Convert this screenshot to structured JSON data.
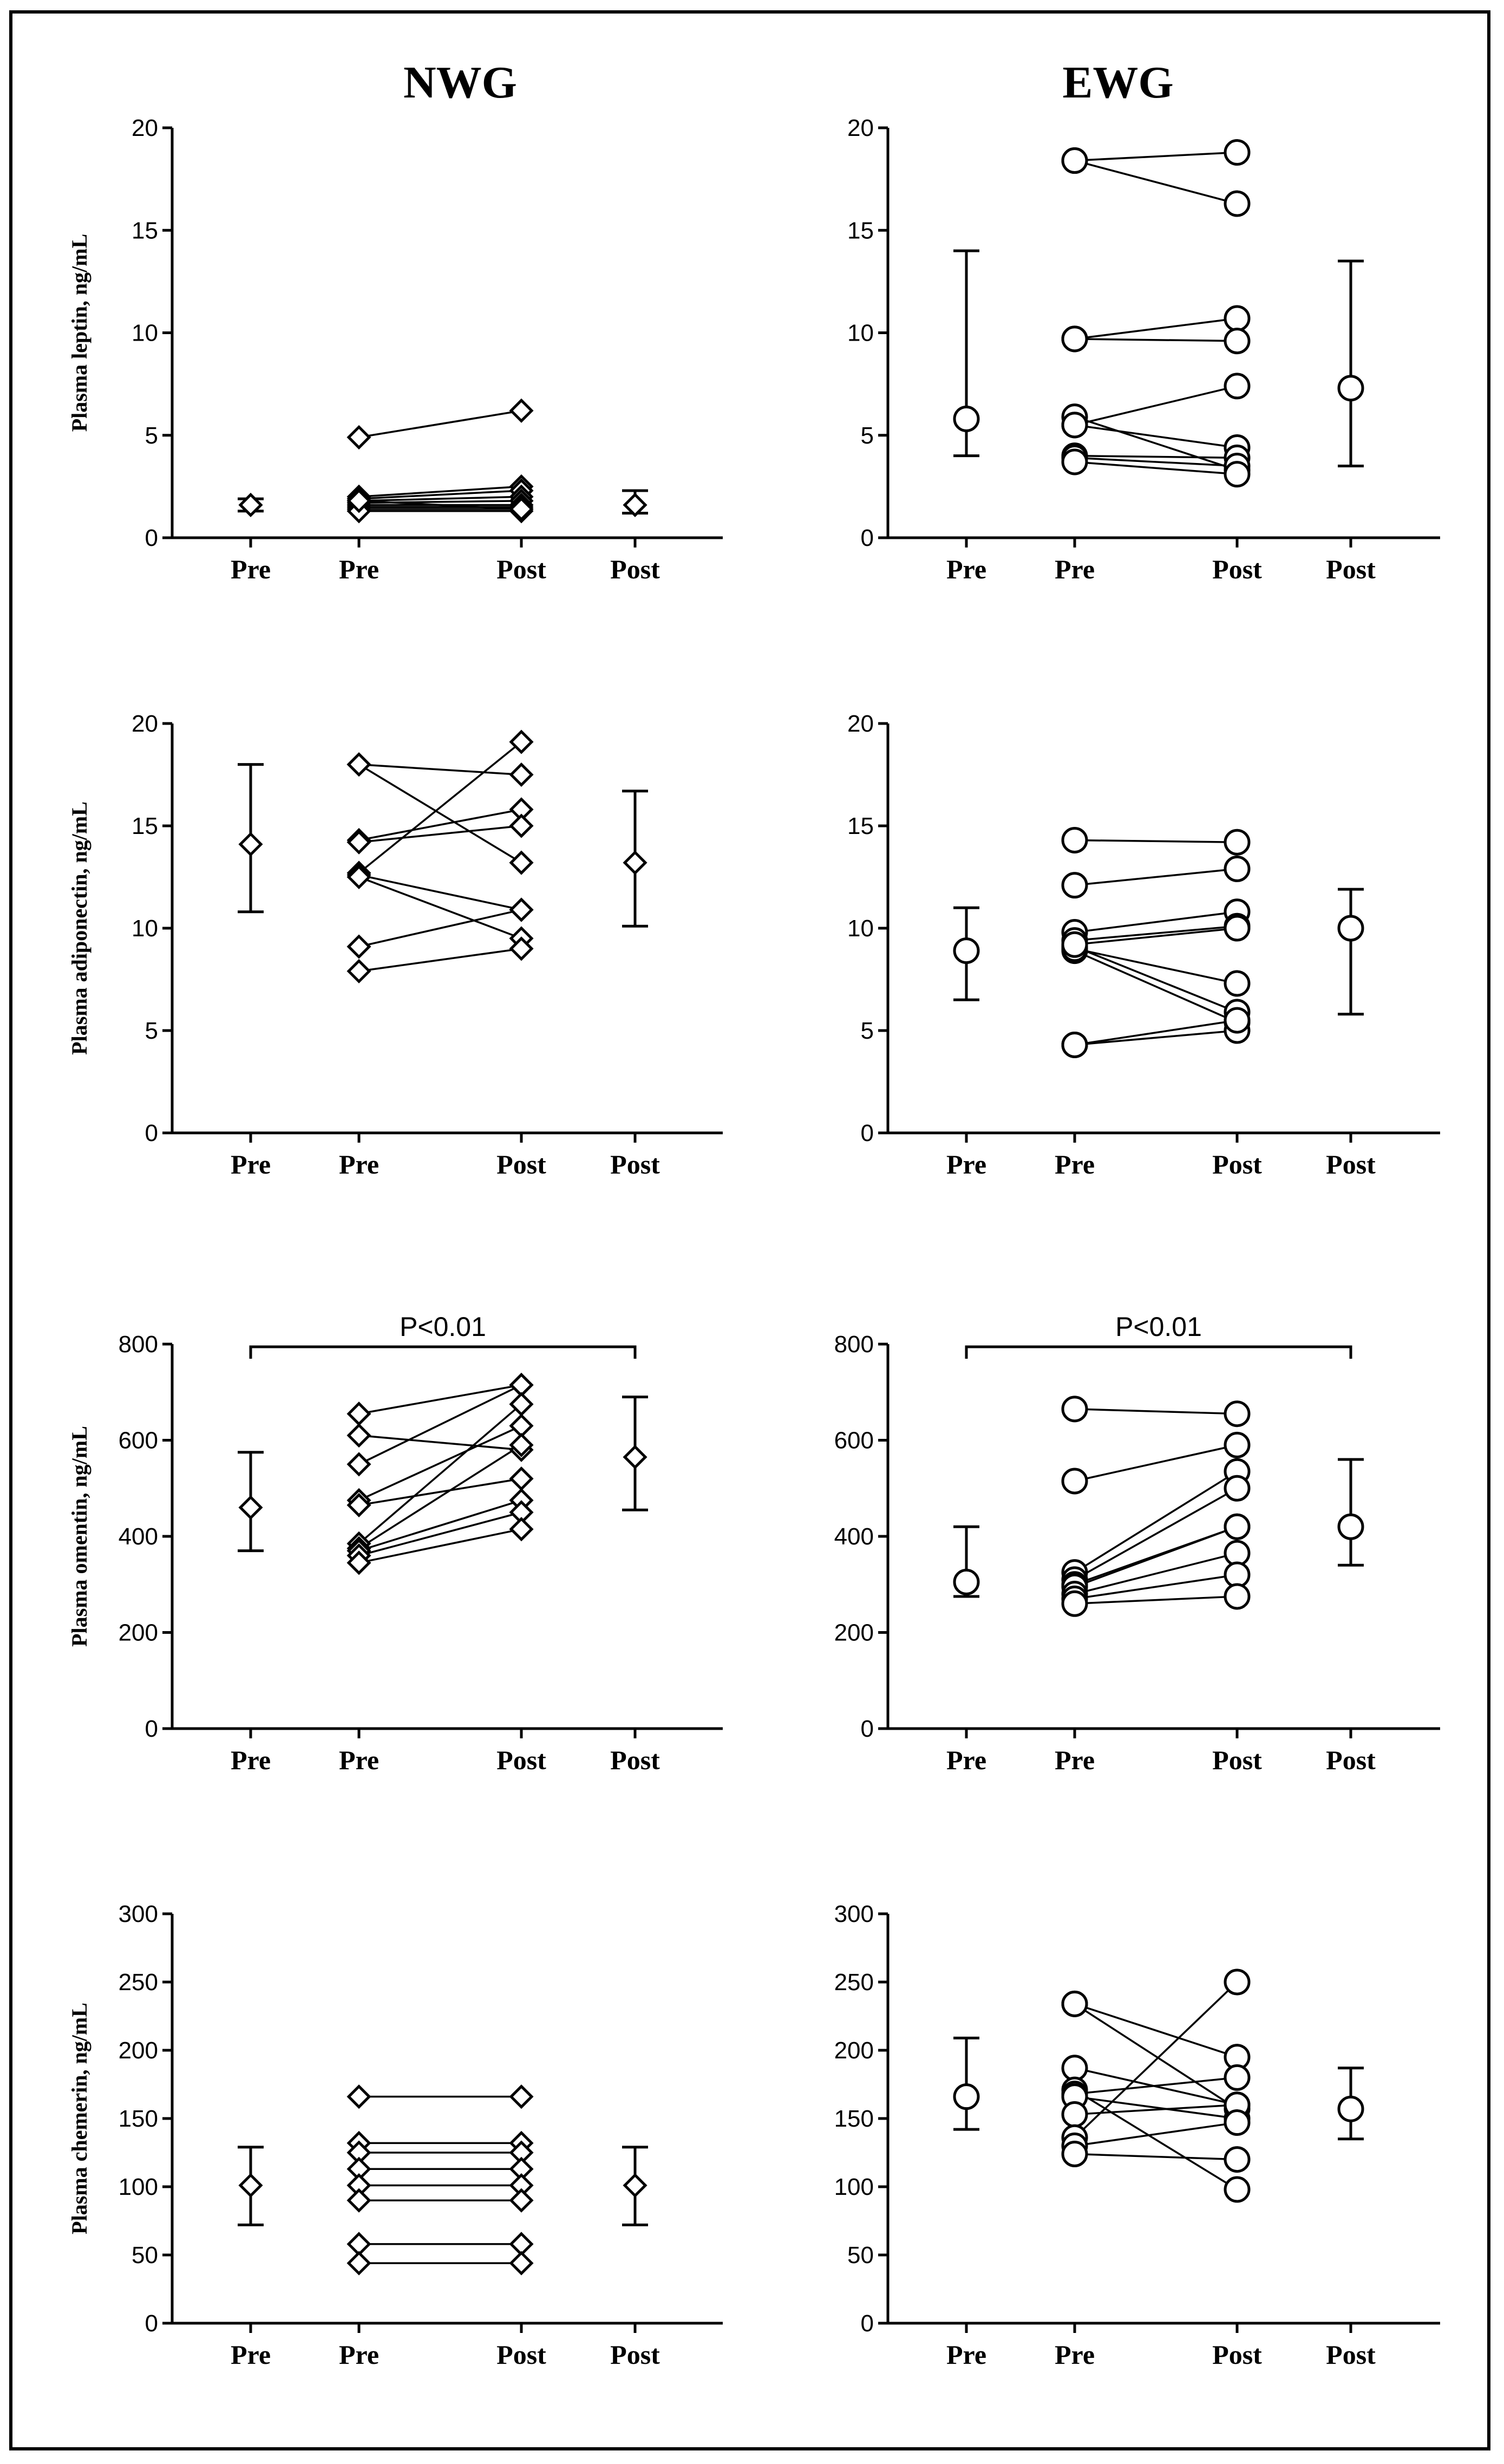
{
  "columns": [
    "NWG",
    "EWG"
  ],
  "chart_data": [
    {
      "type": "scatter",
      "group": "NWG",
      "ylabel": "Plasma leptin, ng/mL",
      "ylim": [
        0,
        20
      ],
      "yticks": [
        0,
        5,
        10,
        15,
        20
      ],
      "tick_labels": [
        "0",
        "5",
        "10",
        "15",
        "20"
      ],
      "categories": [
        "Pre",
        "Pre",
        "Post",
        "Post"
      ],
      "marker": "diamond",
      "pre_summary": {
        "mean": 1.6,
        "lower": 1.3,
        "upper": 1.9
      },
      "post_summary": {
        "mean": 1.6,
        "lower": 1.2,
        "upper": 2.3
      },
      "pairs": [
        [
          4.9,
          6.2
        ],
        [
          2.0,
          2.5
        ],
        [
          1.9,
          2.3
        ],
        [
          1.8,
          2.0
        ],
        [
          1.7,
          1.8
        ],
        [
          1.6,
          1.6
        ],
        [
          1.5,
          1.5
        ],
        [
          1.4,
          1.4
        ],
        [
          1.3,
          1.3
        ],
        [
          1.8,
          1.4
        ]
      ],
      "annotation": ""
    },
    {
      "type": "scatter",
      "group": "EWG",
      "ylabel": "",
      "ylim": [
        0,
        20
      ],
      "yticks": [
        0,
        5,
        10,
        15,
        20
      ],
      "tick_labels": [
        "0",
        "5",
        "10",
        "15",
        "20"
      ],
      "categories": [
        "Pre",
        "Pre",
        "Post",
        "Post"
      ],
      "marker": "circle",
      "pre_summary": {
        "mean": 5.8,
        "lower": 4.0,
        "upper": 14.0
      },
      "post_summary": {
        "mean": 7.3,
        "lower": 3.5,
        "upper": 13.5
      },
      "pairs": [
        [
          18.4,
          18.8
        ],
        [
          18.4,
          16.3
        ],
        [
          9.7,
          10.7
        ],
        [
          9.7,
          9.6
        ],
        [
          5.9,
          3.3
        ],
        [
          5.5,
          7.4
        ],
        [
          5.5,
          4.4
        ],
        [
          4.0,
          3.9
        ],
        [
          3.9,
          3.5
        ],
        [
          3.7,
          3.1
        ]
      ],
      "annotation": ""
    },
    {
      "type": "scatter",
      "group": "NWG",
      "ylabel": "Plasma adiponectin, ng/mL",
      "ylim": [
        0,
        20
      ],
      "yticks": [
        0,
        5,
        10,
        15,
        20
      ],
      "tick_labels": [
        "0",
        "5",
        "10",
        "15",
        "20"
      ],
      "categories": [
        "Pre",
        "Pre",
        "Post",
        "Post"
      ],
      "marker": "diamond",
      "pre_summary": {
        "mean": 14.1,
        "lower": 10.8,
        "upper": 18.0
      },
      "post_summary": {
        "mean": 13.2,
        "lower": 10.1,
        "upper": 16.7
      },
      "pairs": [
        [
          18.0,
          17.5
        ],
        [
          18.0,
          13.2
        ],
        [
          14.3,
          15.8
        ],
        [
          14.2,
          15.0
        ],
        [
          12.7,
          19.1
        ],
        [
          12.6,
          10.9
        ],
        [
          12.5,
          9.5
        ],
        [
          9.1,
          10.9
        ],
        [
          7.9,
          9.0
        ]
      ],
      "annotation": ""
    },
    {
      "type": "scatter",
      "group": "EWG",
      "ylabel": "",
      "ylim": [
        0,
        20
      ],
      "yticks": [
        0,
        5,
        10,
        15,
        20
      ],
      "tick_labels": [
        "0",
        "5",
        "10",
        "15",
        "20"
      ],
      "categories": [
        "Pre",
        "Pre",
        "Post",
        "Post"
      ],
      "marker": "circle",
      "pre_summary": {
        "mean": 8.9,
        "lower": 6.5,
        "upper": 11.0
      },
      "post_summary": {
        "mean": 10.0,
        "lower": 5.8,
        "upper": 11.9
      },
      "pairs": [
        [
          14.3,
          14.2
        ],
        [
          12.1,
          12.9
        ],
        [
          9.8,
          10.8
        ],
        [
          9.4,
          10.1
        ],
        [
          9.1,
          5.9
        ],
        [
          8.9,
          5.4
        ],
        [
          9.0,
          7.3
        ],
        [
          9.2,
          10.0
        ],
        [
          4.3,
          5.0
        ],
        [
          4.3,
          5.5
        ]
      ],
      "annotation": ""
    },
    {
      "type": "scatter",
      "group": "NWG",
      "ylabel": "Plasma omentin, ng/mL",
      "ylim": [
        0,
        800
      ],
      "yticks": [
        0,
        200,
        400,
        600,
        800
      ],
      "tick_labels": [
        "0",
        "200",
        "400",
        "600",
        "800"
      ],
      "categories": [
        "Pre",
        "Pre",
        "Post",
        "Post"
      ],
      "marker": "diamond",
      "pre_summary": {
        "mean": 460,
        "lower": 370,
        "upper": 575
      },
      "post_summary": {
        "mean": 565,
        "lower": 455,
        "upper": 690
      },
      "pairs": [
        [
          655,
          715
        ],
        [
          610,
          580
        ],
        [
          550,
          715
        ],
        [
          475,
          630
        ],
        [
          465,
          520
        ],
        [
          385,
          675
        ],
        [
          375,
          590
        ],
        [
          370,
          475
        ],
        [
          360,
          450
        ],
        [
          345,
          415
        ]
      ],
      "annotation": "P<0.01"
    },
    {
      "type": "scatter",
      "group": "EWG",
      "ylabel": "",
      "ylim": [
        0,
        800
      ],
      "yticks": [
        0,
        200,
        400,
        600,
        800
      ],
      "tick_labels": [
        "0",
        "200",
        "400",
        "600",
        "800"
      ],
      "categories": [
        "Pre",
        "Pre",
        "Post",
        "Post"
      ],
      "marker": "circle",
      "pre_summary": {
        "mean": 305,
        "lower": 275,
        "upper": 420
      },
      "post_summary": {
        "mean": 420,
        "lower": 340,
        "upper": 560
      },
      "pairs": [
        [
          665,
          655
        ],
        [
          515,
          590
        ],
        [
          325,
          535
        ],
        [
          310,
          500
        ],
        [
          300,
          420
        ],
        [
          295,
          420
        ],
        [
          280,
          365
        ],
        [
          270,
          320
        ],
        [
          260,
          275
        ]
      ],
      "annotation": "P<0.01"
    },
    {
      "type": "scatter",
      "group": "NWG",
      "ylabel": "Plasma chemerin, ng/mL",
      "ylim": [
        0,
        300
      ],
      "yticks": [
        0,
        50,
        100,
        150,
        200,
        250,
        300
      ],
      "tick_labels": [
        "0",
        "50",
        "100",
        "150",
        "200",
        "250",
        "300"
      ],
      "categories": [
        "Pre",
        "Pre",
        "Post",
        "Post"
      ],
      "marker": "diamond",
      "pre_summary": {
        "mean": 101,
        "lower": 72,
        "upper": 129
      },
      "post_summary": {
        "mean": 101,
        "lower": 72,
        "upper": 129
      },
      "pairs": [
        [
          166,
          166
        ],
        [
          132,
          132
        ],
        [
          125,
          125
        ],
        [
          113,
          113
        ],
        [
          101,
          101
        ],
        [
          90,
          90
        ],
        [
          58,
          58
        ],
        [
          44,
          44
        ]
      ],
      "annotation": ""
    },
    {
      "type": "scatter",
      "group": "EWG",
      "ylabel": "",
      "ylim": [
        0,
        300
      ],
      "yticks": [
        0,
        50,
        100,
        150,
        200,
        250,
        300
      ],
      "tick_labels": [
        "0",
        "50",
        "100",
        "150",
        "200",
        "250",
        "300"
      ],
      "categories": [
        "Pre",
        "Pre",
        "Post",
        "Post"
      ],
      "marker": "circle",
      "pre_summary": {
        "mean": 166,
        "lower": 142,
        "upper": 209
      },
      "post_summary": {
        "mean": 157,
        "lower": 135,
        "upper": 187
      },
      "pairs": [
        [
          234,
          195
        ],
        [
          234,
          157
        ],
        [
          187,
          160
        ],
        [
          171,
          98
        ],
        [
          168,
          180
        ],
        [
          166,
          150
        ],
        [
          153,
          160
        ],
        [
          136,
          250
        ],
        [
          130,
          147
        ],
        [
          124,
          120
        ]
      ],
      "annotation": ""
    }
  ]
}
